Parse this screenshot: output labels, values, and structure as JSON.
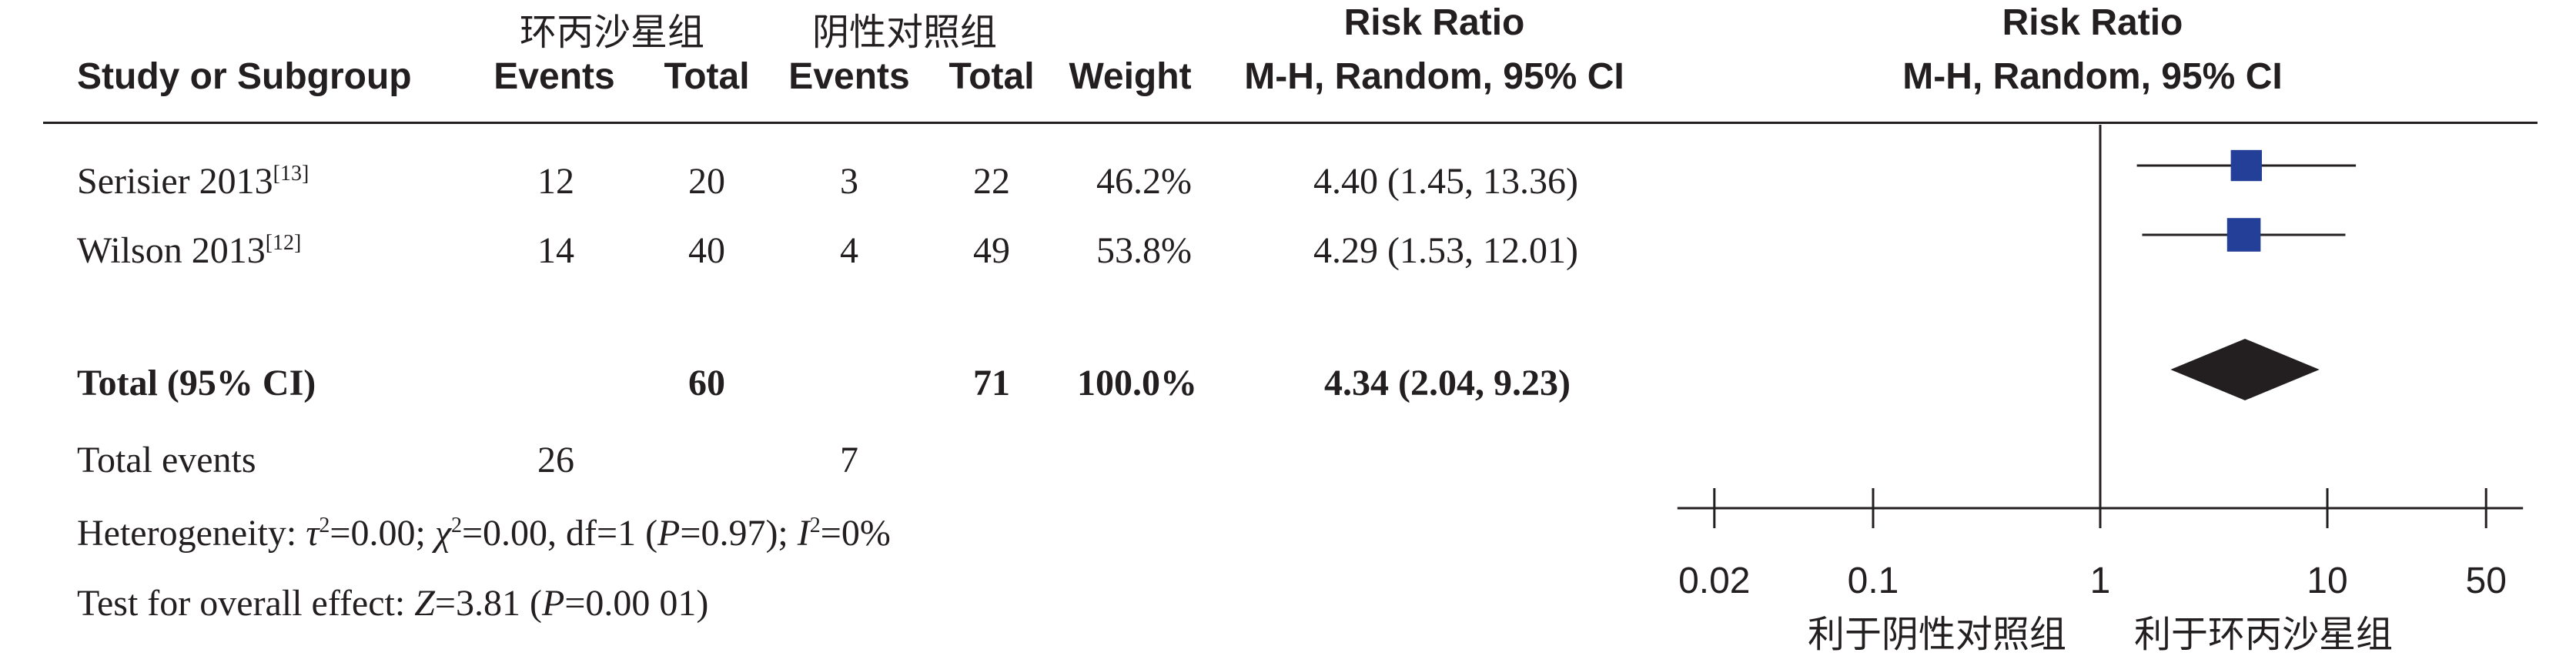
{
  "header": {
    "group1": "环丙沙星组",
    "group2": "阴性对照组",
    "study_label": "Study or Subgroup",
    "events1": "Events",
    "total1": "Total",
    "events2": "Events",
    "total2": "Total",
    "weight": "Weight",
    "rr_title": "Risk Ratio",
    "rr_method": "M-H, Random, 95% CI",
    "plot_title": "Risk Ratio",
    "plot_method": "M-H, Random, 95% CI"
  },
  "studies": [
    {
      "name": "Serisier 2013",
      "ref": "[13]",
      "events1": "12",
      "total1": "20",
      "events2": "3",
      "total2": "22",
      "weight": "46.2%",
      "rr_text": "4.40 (1.45, 13.36)"
    },
    {
      "name": "Wilson 2013",
      "ref": "[12]",
      "events1": "14",
      "total1": "40",
      "events2": "4",
      "total2": "49",
      "weight": "53.8%",
      "rr_text": "4.29 (1.53, 12.01)"
    }
  ],
  "total": {
    "label": "Total (95% CI)",
    "total1": "60",
    "total2": "71",
    "weight": "100.0%",
    "rr_text": "4.34 (2.04, 9.23)"
  },
  "total_events": {
    "label": "Total events",
    "events1": "26",
    "events2": "7"
  },
  "heterogeneity": {
    "label": "Heterogeneity: ",
    "tau_sym": "τ",
    "tau_val": "=0.00; ",
    "chi_sym": "χ",
    "chi_val": "=0.00, df=1 (",
    "p_sym": "P",
    "p_val": "=0.97); ",
    "i_sym": "I",
    "i_val": "=0%"
  },
  "overall": {
    "label": "Test for overall effect: ",
    "z_sym": "Z",
    "z_val": "=3.81 (",
    "p_sym": "P",
    "p_val": "=0.00 01)"
  },
  "chart_data": {
    "type": "forest",
    "scale": "log",
    "xlim": [
      0.02,
      50
    ],
    "ticks": [
      "0.02",
      "0.1",
      "1",
      "10",
      "50"
    ],
    "favours_left": "利于阴性对照组",
    "favours_right": "利于环丙沙星组",
    "studies": [
      {
        "rr": 4.4,
        "lo": 1.45,
        "hi": 13.36,
        "weight": 46.2
      },
      {
        "rr": 4.29,
        "lo": 1.53,
        "hi": 12.01,
        "weight": 53.8
      }
    ],
    "pooled": {
      "rr": 4.34,
      "lo": 2.04,
      "hi": 9.23
    },
    "colors": {
      "square": "#233f97",
      "diamond": "#231f20",
      "axis": "#231f20"
    }
  }
}
